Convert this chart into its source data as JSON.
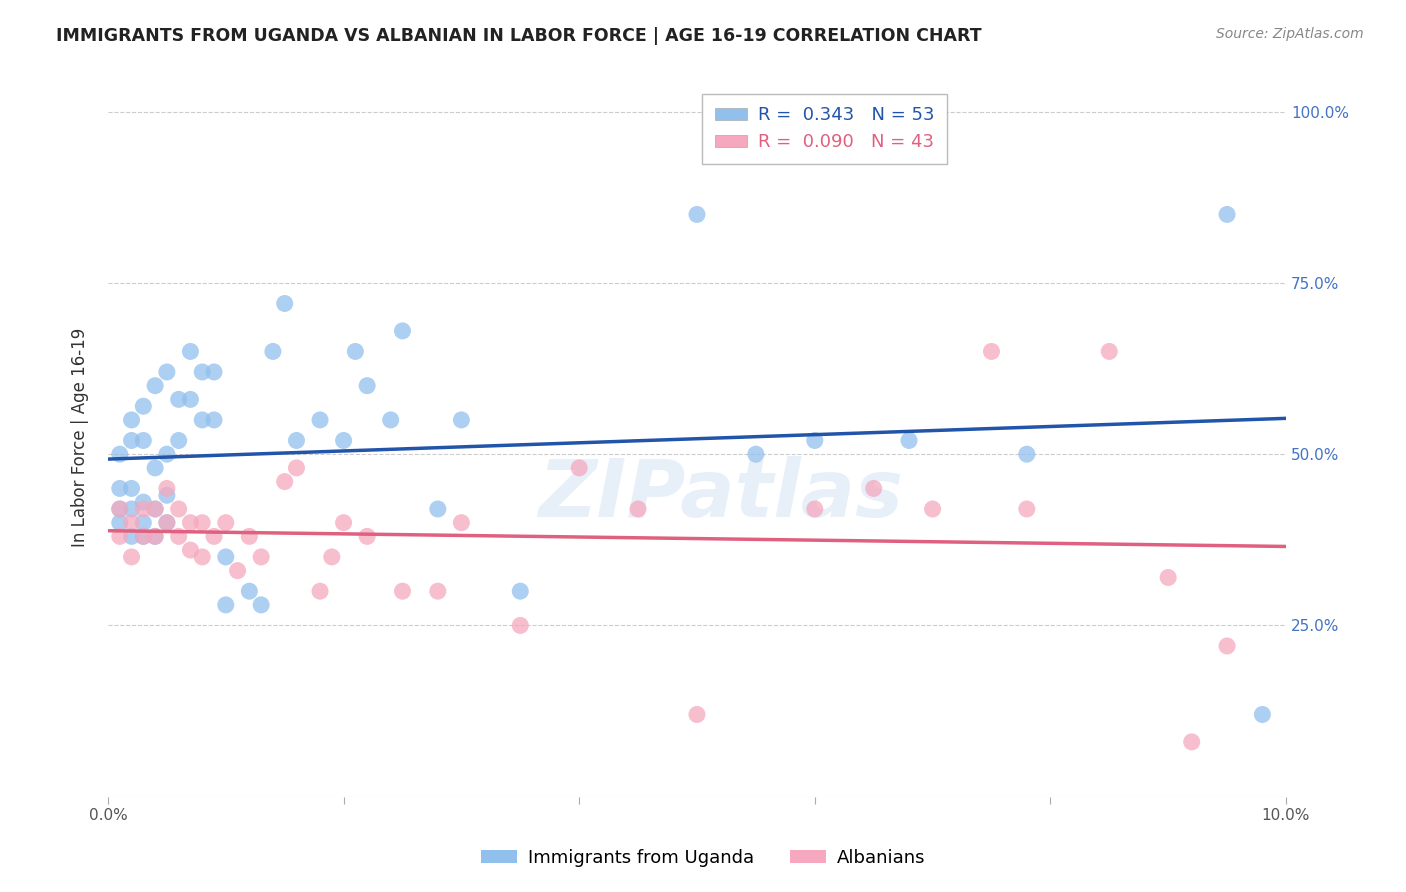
{
  "title": "IMMIGRANTS FROM UGANDA VS ALBANIAN IN LABOR FORCE | AGE 16-19 CORRELATION CHART",
  "source": "Source: ZipAtlas.com",
  "ylabel": "In Labor Force | Age 16-19",
  "xlim": [
    0.0,
    0.1
  ],
  "ylim": [
    0.0,
    1.05
  ],
  "xticks": [
    0.0,
    0.02,
    0.04,
    0.06,
    0.08,
    0.1
  ],
  "yticks": [
    0.0,
    0.25,
    0.5,
    0.75,
    1.0
  ],
  "xticklabels": [
    "0.0%",
    "",
    "",
    "",
    "",
    "10.0%"
  ],
  "yticklabels_right": [
    "",
    "25.0%",
    "50.0%",
    "75.0%",
    "100.0%"
  ],
  "blue_R": 0.343,
  "blue_N": 53,
  "pink_R": 0.09,
  "pink_N": 43,
  "blue_color": "#92C0ED",
  "pink_color": "#F5A8BE",
  "blue_line_color": "#2255AA",
  "pink_line_color": "#E06080",
  "watermark": "ZIPatlas",
  "legend_label_blue": "Immigrants from Uganda",
  "legend_label_pink": "Albanians",
  "blue_x": [
    0.001,
    0.001,
    0.001,
    0.001,
    0.002,
    0.002,
    0.002,
    0.002,
    0.002,
    0.003,
    0.003,
    0.003,
    0.003,
    0.003,
    0.004,
    0.004,
    0.004,
    0.004,
    0.005,
    0.005,
    0.005,
    0.005,
    0.006,
    0.006,
    0.007,
    0.007,
    0.008,
    0.008,
    0.009,
    0.009,
    0.01,
    0.01,
    0.012,
    0.013,
    0.014,
    0.015,
    0.016,
    0.018,
    0.02,
    0.021,
    0.022,
    0.024,
    0.025,
    0.028,
    0.03,
    0.035,
    0.05,
    0.055,
    0.06,
    0.068,
    0.078,
    0.095,
    0.098
  ],
  "blue_y": [
    0.4,
    0.42,
    0.45,
    0.5,
    0.38,
    0.42,
    0.45,
    0.52,
    0.55,
    0.38,
    0.4,
    0.43,
    0.52,
    0.57,
    0.38,
    0.42,
    0.48,
    0.6,
    0.4,
    0.44,
    0.5,
    0.62,
    0.52,
    0.58,
    0.58,
    0.65,
    0.55,
    0.62,
    0.55,
    0.62,
    0.28,
    0.35,
    0.3,
    0.28,
    0.65,
    0.72,
    0.52,
    0.55,
    0.52,
    0.65,
    0.6,
    0.55,
    0.68,
    0.42,
    0.55,
    0.3,
    0.85,
    0.5,
    0.52,
    0.52,
    0.5,
    0.85,
    0.12
  ],
  "pink_x": [
    0.001,
    0.001,
    0.002,
    0.002,
    0.003,
    0.003,
    0.004,
    0.004,
    0.005,
    0.005,
    0.006,
    0.006,
    0.007,
    0.007,
    0.008,
    0.008,
    0.009,
    0.01,
    0.011,
    0.012,
    0.013,
    0.015,
    0.016,
    0.018,
    0.019,
    0.02,
    0.022,
    0.025,
    0.028,
    0.03,
    0.035,
    0.04,
    0.045,
    0.05,
    0.06,
    0.065,
    0.07,
    0.075,
    0.078,
    0.085,
    0.09,
    0.092,
    0.095
  ],
  "pink_y": [
    0.38,
    0.42,
    0.35,
    0.4,
    0.38,
    0.42,
    0.38,
    0.42,
    0.4,
    0.45,
    0.38,
    0.42,
    0.36,
    0.4,
    0.35,
    0.4,
    0.38,
    0.4,
    0.33,
    0.38,
    0.35,
    0.46,
    0.48,
    0.3,
    0.35,
    0.4,
    0.38,
    0.3,
    0.3,
    0.4,
    0.25,
    0.48,
    0.42,
    0.12,
    0.42,
    0.45,
    0.42,
    0.65,
    0.42,
    0.65,
    0.32,
    0.08,
    0.22
  ]
}
